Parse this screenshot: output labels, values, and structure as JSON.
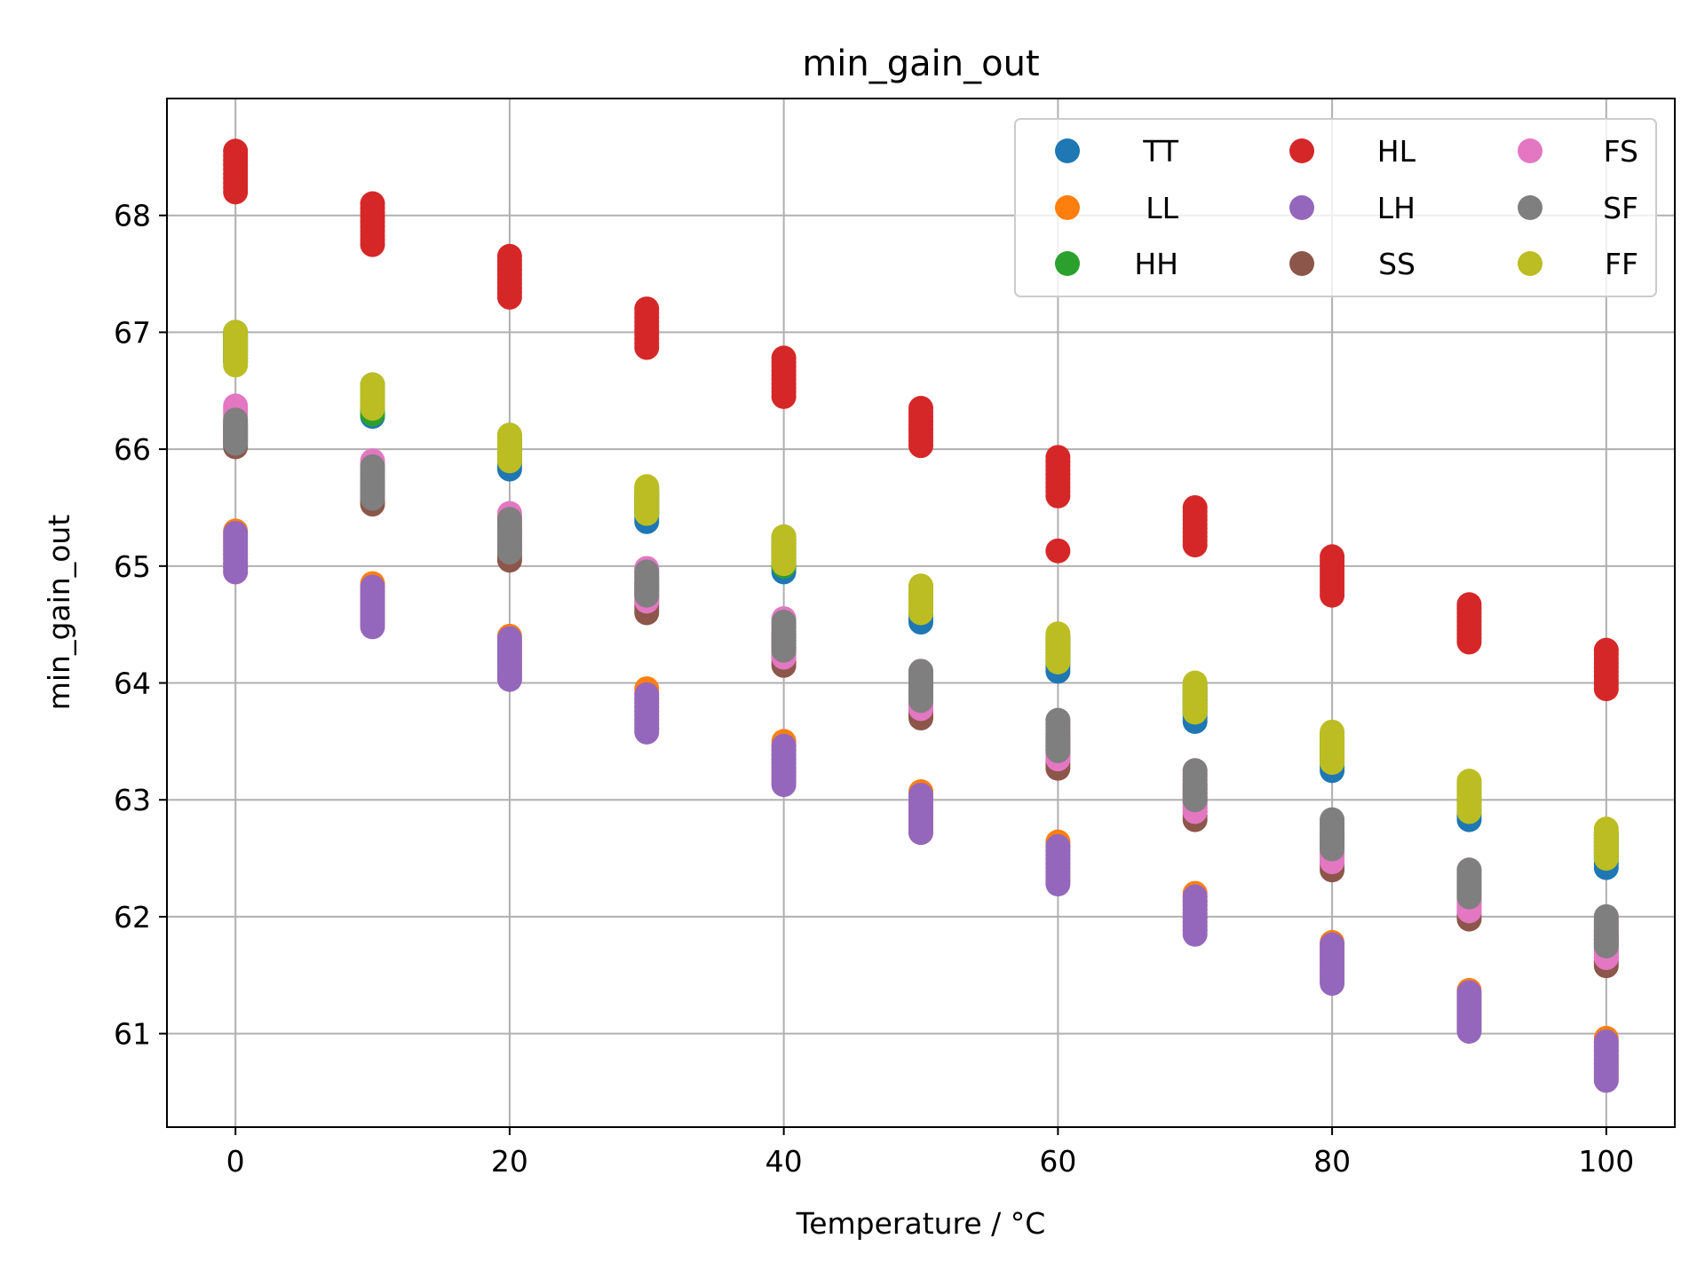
{
  "chart_data": {
    "type": "scatter",
    "title": "min_gain_out",
    "xlabel": "Temperature / °C",
    "ylabel": "min_gain_out",
    "xlim": [
      -5,
      105
    ],
    "ylim": [
      60.2,
      69.0
    ],
    "xticks": [
      0,
      20,
      40,
      60,
      80,
      100
    ],
    "yticks": [
      61,
      62,
      63,
      64,
      65,
      66,
      67,
      68
    ],
    "grid": true,
    "legend_position": "top-right",
    "legend_columns": 3,
    "x": [
      0,
      10,
      20,
      30,
      40,
      50,
      60,
      70,
      80,
      90,
      100
    ],
    "series": [
      {
        "name": "TT",
        "color": "#1f77b4",
        "lo": [
          66.75,
          66.28,
          65.83,
          65.38,
          64.95,
          64.52,
          64.1,
          63.67,
          63.25,
          62.83,
          62.42
        ],
        "hi": [
          67.0,
          66.55,
          66.1,
          65.62,
          65.22,
          64.8,
          64.38,
          63.95,
          63.52,
          63.1,
          62.7
        ]
      },
      {
        "name": "LL",
        "color": "#ff7f0e",
        "lo": [
          64.95,
          64.5,
          64.05,
          63.6,
          63.15,
          62.72,
          62.3,
          61.88,
          61.45,
          61.03,
          60.62
        ],
        "hi": [
          65.3,
          64.85,
          64.4,
          63.95,
          63.5,
          63.07,
          62.64,
          62.2,
          61.78,
          61.37,
          60.96
        ]
      },
      {
        "name": "HH",
        "color": "#2ca02c",
        "lo": [
          66.75,
          66.3,
          65.9,
          65.45,
          65.0,
          64.6,
          64.18,
          63.75,
          63.32,
          62.9,
          62.5
        ],
        "hi": [
          67.0,
          66.55,
          66.12,
          65.67,
          65.25,
          64.82,
          64.4,
          63.98,
          63.56,
          63.14,
          62.72
        ]
      },
      {
        "name": "HL",
        "color": "#d62728",
        "lo": [
          68.2,
          67.75,
          67.3,
          66.87,
          66.45,
          66.03,
          65.6,
          65.18,
          64.75,
          64.35,
          63.95
        ],
        "hi": [
          68.55,
          68.1,
          67.65,
          67.2,
          66.78,
          66.35,
          65.93,
          65.5,
          65.08,
          64.67,
          64.28
        ],
        "extra": [
          {
            "x": 60,
            "y": 65.13
          }
        ]
      },
      {
        "name": "LH",
        "color": "#9467bd",
        "lo": [
          64.95,
          64.48,
          64.03,
          63.58,
          63.13,
          62.72,
          62.28,
          61.85,
          61.43,
          61.02,
          60.6
        ],
        "hi": [
          65.28,
          64.82,
          64.38,
          63.9,
          63.46,
          63.04,
          62.6,
          62.17,
          61.76,
          61.35,
          60.93
        ]
      },
      {
        "name": "SS",
        "color": "#8c564b",
        "lo": [
          66.02,
          65.53,
          65.05,
          64.6,
          64.15,
          63.7,
          63.27,
          62.83,
          62.4,
          61.98,
          61.58
        ],
        "hi": [
          66.2,
          65.75,
          65.3,
          64.85,
          64.42,
          63.98,
          63.55,
          63.12,
          62.7,
          62.28,
          61.87
        ]
      },
      {
        "name": "FS",
        "color": "#e377c2",
        "lo": [
          66.1,
          65.63,
          65.18,
          64.7,
          64.22,
          63.78,
          63.35,
          62.9,
          62.47,
          62.05,
          61.65
        ],
        "hi": [
          66.37,
          65.9,
          65.45,
          64.98,
          64.55,
          64.1,
          63.68,
          63.25,
          62.82,
          62.4,
          62.0
        ]
      },
      {
        "name": "SF",
        "color": "#7f7f7f",
        "lo": [
          66.05,
          65.58,
          65.12,
          64.75,
          64.28,
          63.85,
          63.42,
          63.0,
          62.58,
          62.17,
          61.75
        ],
        "hi": [
          66.25,
          65.85,
          65.4,
          64.95,
          64.52,
          64.1,
          63.68,
          63.25,
          62.83,
          62.4,
          62.0
        ]
      },
      {
        "name": "FF",
        "color": "#bcbd22",
        "lo": [
          66.72,
          66.35,
          65.9,
          65.45,
          65.02,
          64.6,
          64.18,
          63.75,
          63.32,
          62.9,
          62.5
        ],
        "hi": [
          67.0,
          66.55,
          66.12,
          65.68,
          65.25,
          64.83,
          64.42,
          64.0,
          63.58,
          63.16,
          62.75
        ]
      }
    ]
  }
}
